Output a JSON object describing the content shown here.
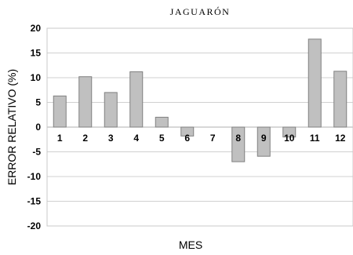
{
  "chart_data": {
    "type": "bar",
    "title": "JAGUARÓN",
    "xlabel": "MES",
    "ylabel": "ERROR RELATIVO (%)",
    "categories": [
      "1",
      "2",
      "3",
      "4",
      "5",
      "6",
      "7",
      "8",
      "9",
      "10",
      "11",
      "12"
    ],
    "values": [
      6.3,
      10.2,
      7.0,
      11.2,
      2.0,
      -1.8,
      0,
      -7.0,
      -5.9,
      -2.0,
      17.8,
      11.3
    ],
    "yticks": [
      "20",
      "15",
      "10",
      "5",
      "0",
      "-5",
      "-10",
      "-15",
      "-20"
    ],
    "ylim": [
      -20,
      20
    ],
    "grid": true,
    "bar_color": "#c0c0c0",
    "legend": "none"
  }
}
